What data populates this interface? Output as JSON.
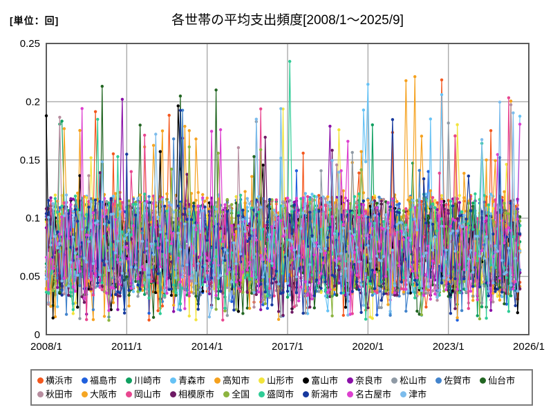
{
  "header": {
    "unit_label": "[単位：回]",
    "title": "各世帯の平均支出頻度[2008/1～2025/9]"
  },
  "chart_data": {
    "type": "line",
    "title": "各世帯の平均支出頻度[2008/1～2025/9]",
    "unit": "回",
    "x_start": "2008/1",
    "x_end": "2025/9",
    "months": 213,
    "x_axis_total_months": 216,
    "ylim": [
      0,
      0.25
    ],
    "grid": true,
    "legend_position": "bottom",
    "marker": "circle",
    "colors": {
      "axis_border": "#5a5a5a",
      "gridline": "#aaaaaa",
      "background": "#ffffff"
    },
    "yticks": [
      {
        "label": "0",
        "value": 0
      },
      {
        "label": "0.05",
        "value": 0.05
      },
      {
        "label": "0.1",
        "value": 0.1
      },
      {
        "label": "0.15",
        "value": 0.15
      },
      {
        "label": "0.2",
        "value": 0.2
      },
      {
        "label": "0.25",
        "value": 0.25
      }
    ],
    "xticks": [
      {
        "label": "2008/1",
        "month": 0
      },
      {
        "label": "2011/1",
        "month": 36
      },
      {
        "label": "2014/1",
        "month": 72
      },
      {
        "label": "2017/1",
        "month": 108
      },
      {
        "label": "2020/1",
        "month": 144
      },
      {
        "label": "2023/1",
        "month": 180
      },
      {
        "label": "2026/1",
        "month": 216
      }
    ],
    "legend_rows": [
      11,
      9
    ],
    "series": [
      {
        "name": "横浜市",
        "id": "yokohama",
        "color": "#f4581e",
        "mean": 0.077,
        "spread": 0.043,
        "spike_prob": 0.028,
        "spike_max": 0.22,
        "low_prob": 0.045,
        "seed": 11
      },
      {
        "name": "福島市",
        "id": "fukushima",
        "color": "#2060dd",
        "mean": 0.075,
        "spread": 0.042,
        "spike_prob": 0.026,
        "spike_max": 0.19,
        "low_prob": 0.045,
        "seed": 22
      },
      {
        "name": "川崎市",
        "id": "kawasaki",
        "color": "#0fa060",
        "mean": 0.074,
        "spread": 0.042,
        "spike_prob": 0.025,
        "spike_max": 0.19,
        "low_prob": 0.05,
        "seed": 33
      },
      {
        "name": "青森市",
        "id": "aomori",
        "color": "#66c2f5",
        "mean": 0.078,
        "spread": 0.044,
        "spike_prob": 0.03,
        "spike_max": 0.225,
        "low_prob": 0.05,
        "seed": 44
      },
      {
        "name": "高知市",
        "id": "kochi",
        "color": "#f5a11e",
        "mean": 0.08,
        "spread": 0.044,
        "spike_prob": 0.03,
        "spike_max": 0.225,
        "low_prob": 0.04,
        "seed": 55
      },
      {
        "name": "山形市",
        "id": "yamagata",
        "color": "#f2e43c",
        "mean": 0.077,
        "spread": 0.043,
        "spike_prob": 0.027,
        "spike_max": 0.2,
        "low_prob": 0.045,
        "seed": 66
      },
      {
        "name": "富山市",
        "id": "toyama",
        "color": "#000000",
        "mean": 0.076,
        "spread": 0.043,
        "spike_prob": 0.027,
        "spike_max": 0.22,
        "low_prob": 0.045,
        "seed": 77
      },
      {
        "name": "奈良市",
        "id": "nara",
        "color": "#8a10a8",
        "mean": 0.075,
        "spread": 0.043,
        "spike_prob": 0.028,
        "spike_max": 0.22,
        "low_prob": 0.045,
        "seed": 88
      },
      {
        "name": "松山市",
        "id": "matsuyama",
        "color": "#8f9aa5",
        "mean": 0.074,
        "spread": 0.042,
        "spike_prob": 0.024,
        "spike_max": 0.19,
        "low_prob": 0.05,
        "seed": 99
      },
      {
        "name": "佐賀市",
        "id": "saga",
        "color": "#4384cc",
        "mean": 0.076,
        "spread": 0.043,
        "spike_prob": 0.026,
        "spike_max": 0.21,
        "low_prob": 0.05,
        "seed": 110
      },
      {
        "name": "仙台市",
        "id": "sendai",
        "color": "#226622",
        "mean": 0.075,
        "spread": 0.043,
        "spike_prob": 0.028,
        "spike_max": 0.25,
        "low_prob": 0.045,
        "seed": 121
      },
      {
        "name": "秋田市",
        "id": "akita",
        "color": "#b78d9f",
        "mean": 0.075,
        "spread": 0.042,
        "spike_prob": 0.026,
        "spike_max": 0.205,
        "low_prob": 0.045,
        "seed": 132
      },
      {
        "name": "大阪市",
        "id": "osaka",
        "color": "#f5a623",
        "mean": 0.079,
        "spread": 0.044,
        "spike_prob": 0.03,
        "spike_max": 0.22,
        "low_prob": 0.04,
        "seed": 143
      },
      {
        "name": "岡山市",
        "id": "okayama",
        "color": "#e8468f",
        "mean": 0.076,
        "spread": 0.043,
        "spike_prob": 0.026,
        "spike_max": 0.21,
        "low_prob": 0.045,
        "seed": 154
      },
      {
        "name": "相模原市",
        "id": "sagamihara",
        "color": "#6e1a64",
        "mean": 0.074,
        "spread": 0.042,
        "spike_prob": 0.025,
        "spike_max": 0.19,
        "low_prob": 0.05,
        "seed": 165
      },
      {
        "name": "全国",
        "id": "zenkoku",
        "color": "#8cb43f",
        "mean": 0.076,
        "spread": 0.04,
        "spike_prob": 0.02,
        "spike_max": 0.17,
        "low_prob": 0.04,
        "seed": 176
      },
      {
        "name": "盛岡市",
        "id": "morioka",
        "color": "#2ecc96",
        "mean": 0.077,
        "spread": 0.044,
        "spike_prob": 0.03,
        "spike_max": 0.235,
        "low_prob": 0.05,
        "seed": 187
      },
      {
        "name": "新潟市",
        "id": "niigata",
        "color": "#17399e",
        "mean": 0.075,
        "spread": 0.042,
        "spike_prob": 0.025,
        "spike_max": 0.2,
        "low_prob": 0.045,
        "seed": 198
      },
      {
        "name": "名古屋市",
        "id": "nagoya",
        "color": "#dd3fcf",
        "mean": 0.076,
        "spread": 0.043,
        "spike_prob": 0.026,
        "spike_max": 0.21,
        "low_prob": 0.045,
        "seed": 209
      },
      {
        "name": "津市",
        "id": "tsu",
        "color": "#7cbcec",
        "mean": 0.077,
        "spread": 0.043,
        "spike_prob": 0.027,
        "spike_max": 0.21,
        "low_prob": 0.045,
        "seed": 220
      }
    ]
  }
}
